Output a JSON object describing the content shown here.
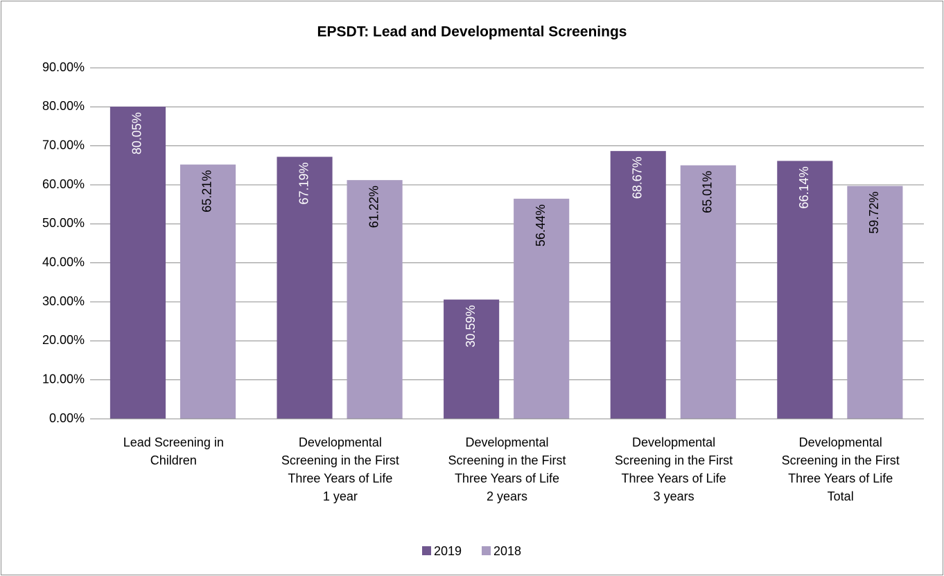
{
  "chart_data": {
    "type": "bar",
    "title": "EPSDT: Lead and Developmental Screenings",
    "categories": [
      [
        "Lead Screening in",
        "Children"
      ],
      [
        "Developmental",
        "Screening in the First",
        "Three Years of Life",
        "1 year"
      ],
      [
        "Developmental",
        "Screening in the First",
        "Three Years of Life",
        "2 years"
      ],
      [
        "Developmental",
        "Screening in the First",
        "Three Years of Life",
        "3 years"
      ],
      [
        "Developmental",
        "Screening in the First",
        "Three Years of Life",
        "Total"
      ]
    ],
    "series": [
      {
        "name": "2019",
        "color": "#70578f",
        "label_color": "#ffffff",
        "values": [
          80.05,
          67.19,
          30.59,
          68.67,
          66.14
        ],
        "value_labels": [
          "80.05%",
          "67.19%",
          "30.59%",
          "68.67%",
          "66.14%"
        ]
      },
      {
        "name": "2018",
        "color": "#a99bc1",
        "label_color": "#000000",
        "values": [
          65.21,
          61.22,
          56.44,
          65.01,
          59.72
        ],
        "value_labels": [
          "65.21%",
          "61.22%",
          "56.44%",
          "65.01%",
          "59.72%"
        ]
      }
    ],
    "ylim": [
      0,
      90
    ],
    "yticks": [
      {
        "value": 0,
        "label": "0.00%"
      },
      {
        "value": 10,
        "label": "10.00%"
      },
      {
        "value": 20,
        "label": "20.00%"
      },
      {
        "value": 30,
        "label": "30.00%"
      },
      {
        "value": 40,
        "label": "40.00%"
      },
      {
        "value": 50,
        "label": "50.00%"
      },
      {
        "value": 60,
        "label": "60.00%"
      },
      {
        "value": 70,
        "label": "70.00%"
      },
      {
        "value": 80,
        "label": "80.00%"
      },
      {
        "value": 90,
        "label": "90.00%"
      }
    ],
    "grid": true,
    "legend": "bottom"
  }
}
